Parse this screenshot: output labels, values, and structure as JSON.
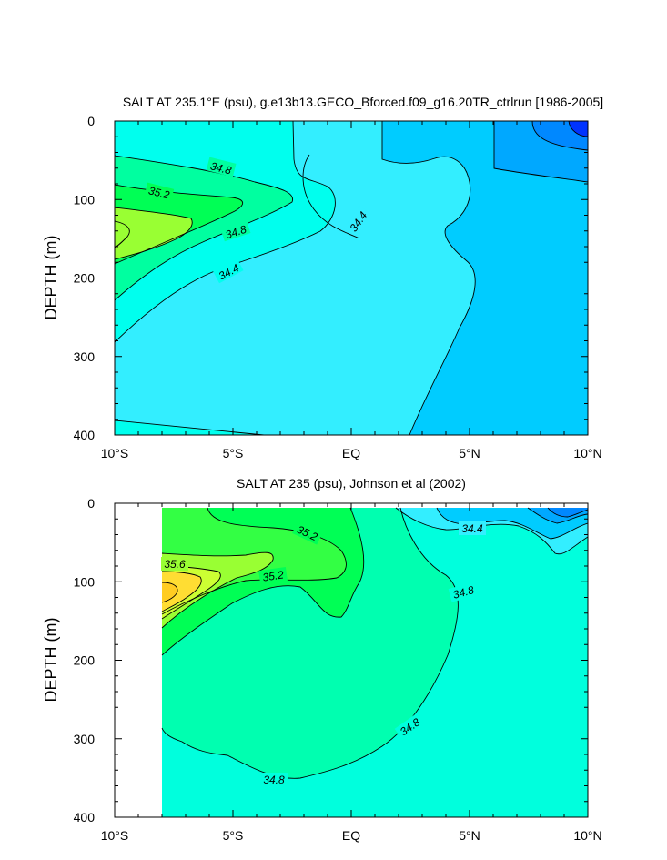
{
  "chart_data": [
    {
      "type": "contour",
      "title": "SALT AT 235.1°E (psu), g.e13b13.GECO_Bforced.f09_g16.20TR_ctrlrun [1986-2005]",
      "ylabel": "DEPTH (m)",
      "xlabel": "",
      "x_ticks": [
        "10°S",
        "5°S",
        "EQ",
        "5°N",
        "10°N"
      ],
      "y_ticks": [
        "0",
        "100",
        "200",
        "300",
        "400"
      ],
      "xlim": [
        -10,
        10
      ],
      "ylim": [
        400,
        0
      ],
      "contour_labels": [
        "34.8",
        "35.2",
        "34.8",
        "34.4",
        "34.4"
      ]
    },
    {
      "type": "contour",
      "title": "SALT AT 235 (psu), Johnson et al (2002)",
      "ylabel": "DEPTH (m)",
      "xlabel": "",
      "x_ticks": [
        "10°S",
        "5°S",
        "EQ",
        "5°N",
        "10°N"
      ],
      "y_ticks": [
        "0",
        "100",
        "200",
        "300",
        "400"
      ],
      "xlim": [
        -10,
        10
      ],
      "ylim": [
        400,
        0
      ],
      "data_start_lon": -8,
      "contour_labels": [
        "35.2",
        "34.4",
        "35.6",
        "35.2",
        "34.8",
        "34.8",
        "34.8"
      ]
    }
  ],
  "colors": {
    "c_336": "#0033ff",
    "c_340": "#0088ff",
    "c_344": "#00a8ff",
    "c_348": "#00ccff",
    "c_352": "#33eeff",
    "c_356": "#00ffee",
    "c_360": "#00ffcc",
    "c_364": "#00ffa0",
    "c_368": "#00ff55",
    "c_372": "#99ff33",
    "c_376": "#ffdd33"
  }
}
